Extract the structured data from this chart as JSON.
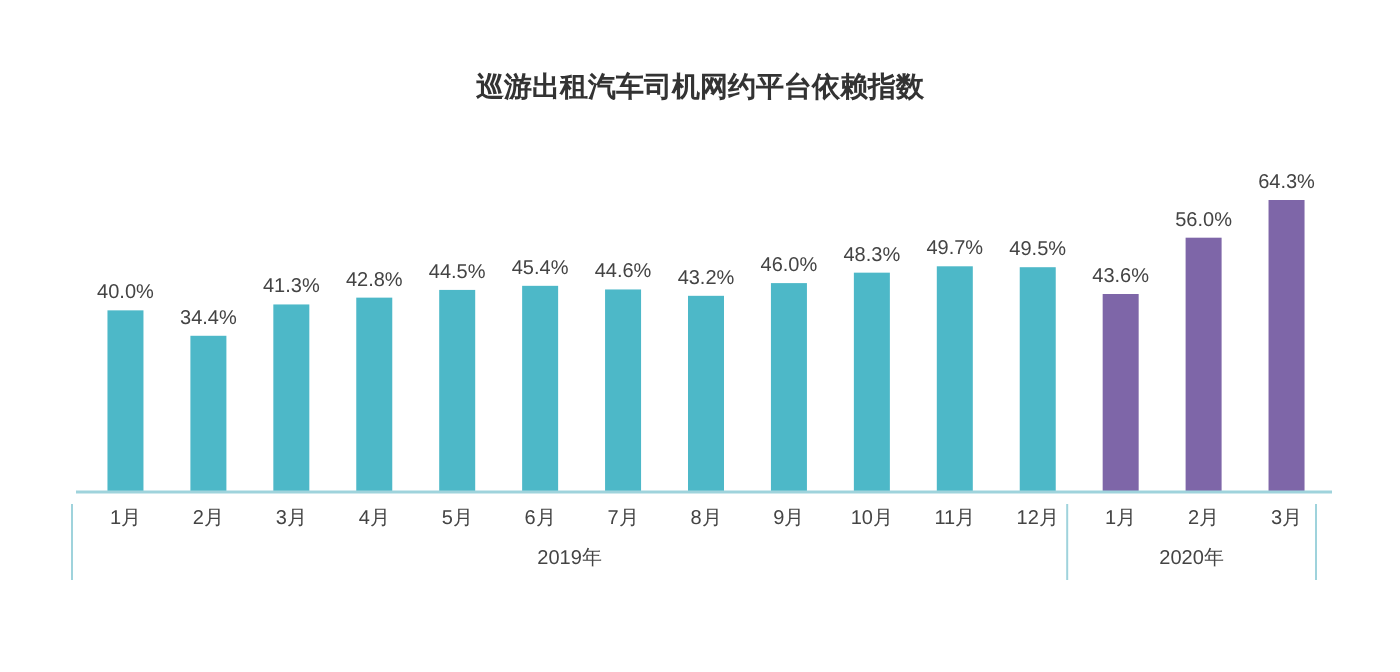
{
  "chart_data": {
    "type": "bar",
    "title": "巡游出租汽车司机网约平台依赖指数",
    "categories": [
      "1月",
      "2月",
      "3月",
      "4月",
      "5月",
      "6月",
      "7月",
      "8月",
      "9月",
      "10月",
      "11月",
      "12月",
      "1月",
      "2月",
      "3月"
    ],
    "values": [
      40.0,
      34.4,
      41.3,
      42.8,
      44.5,
      45.4,
      44.6,
      43.2,
      46.0,
      48.3,
      49.7,
      49.5,
      43.6,
      56.0,
      64.3
    ],
    "value_labels": [
      "40.0%",
      "34.4%",
      "41.3%",
      "42.8%",
      "44.5%",
      "45.4%",
      "44.6%",
      "43.2%",
      "46.0%",
      "48.3%",
      "49.7%",
      "49.5%",
      "43.6%",
      "56.0%",
      "64.3%"
    ],
    "colors": [
      "#4db8c8",
      "#4db8c8",
      "#4db8c8",
      "#4db8c8",
      "#4db8c8",
      "#4db8c8",
      "#4db8c8",
      "#4db8c8",
      "#4db8c8",
      "#4db8c8",
      "#4db8c8",
      "#4db8c8",
      "#7e66a8",
      "#7e66a8",
      "#7e66a8"
    ],
    "annotations": [
      "2019年",
      "2020年"
    ]
  }
}
